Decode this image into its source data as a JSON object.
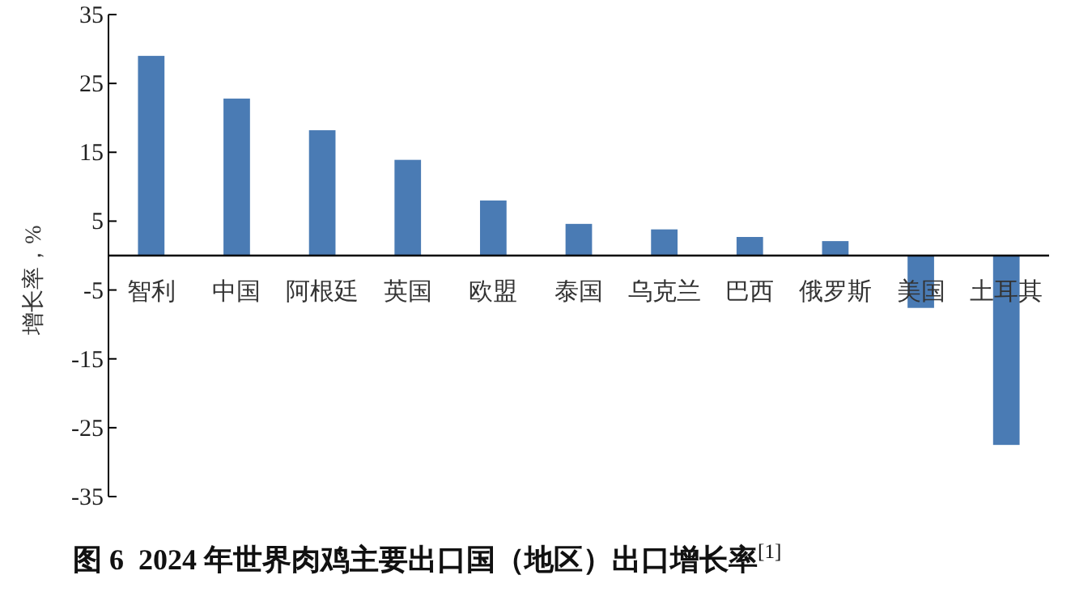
{
  "chart_data": {
    "type": "bar",
    "title": "图 6  2024 年世界肉鸡主要出口国（地区）出口增长率$^{[1]}$",
    "ylabel": "增长率，%",
    "categories": [
      "智利",
      "中国",
      "阿根廷",
      "英国",
      "欧盟",
      "泰国",
      "乌克兰",
      "巴西",
      "俄罗斯",
      "美国",
      "土耳其"
    ],
    "values": [
      29.0,
      22.8,
      18.2,
      13.9,
      8.0,
      4.6,
      3.8,
      2.7,
      2.1,
      -7.6,
      -27.5
    ],
    "color": "#4a7bb4",
    "ylim": [
      -35,
      35
    ],
    "yticks": [
      -35,
      -25,
      -15,
      -5,
      5,
      15,
      25,
      35
    ],
    "grid": false
  }
}
